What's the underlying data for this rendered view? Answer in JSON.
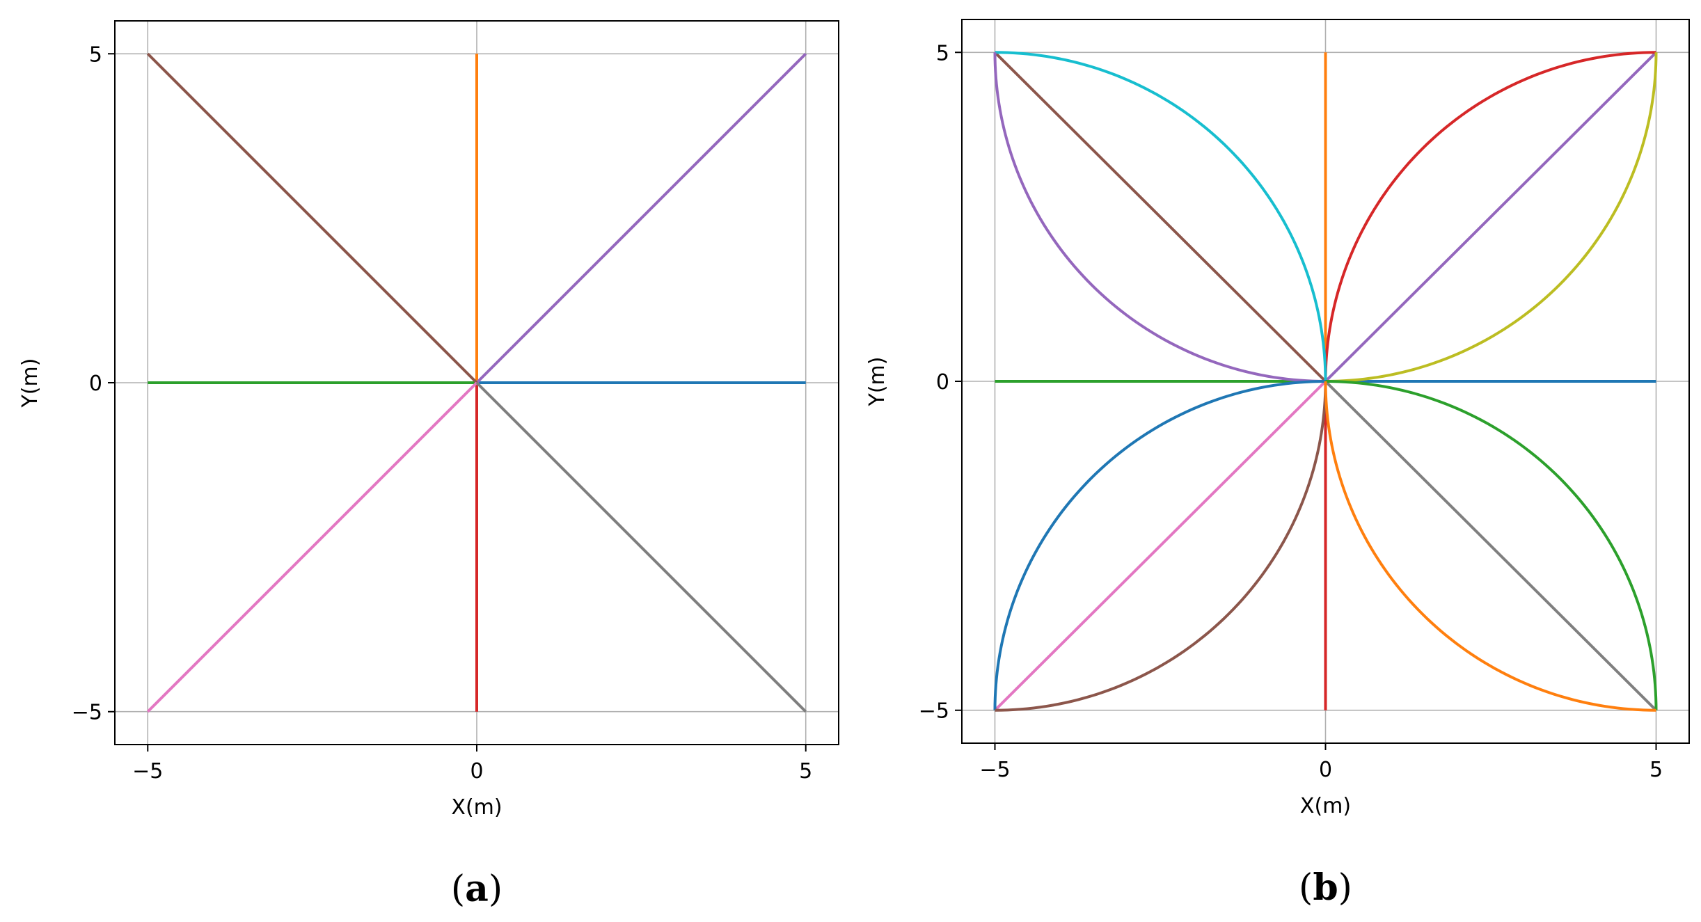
{
  "chart_data": [
    {
      "type": "line",
      "caption": {
        "open": "(",
        "letter": "a",
        "close": ")"
      },
      "xlabel": "X(m)",
      "ylabel": "Y(m)",
      "xlim": [
        -5.5,
        5.5
      ],
      "ylim": [
        -5.5,
        5.5
      ],
      "xticks": [
        -5,
        0,
        5
      ],
      "yticks": [
        -5,
        0,
        5
      ],
      "xtick_labels": [
        "−5",
        "0",
        "5"
      ],
      "ytick_labels": [
        "−5",
        "0",
        "5"
      ],
      "grid": true,
      "series": [
        {
          "color": "#1f77b4",
          "shape": "line",
          "from": [
            0,
            0
          ],
          "to": [
            5,
            0
          ]
        },
        {
          "color": "#ff7f0e",
          "shape": "line",
          "from": [
            0,
            0
          ],
          "to": [
            0,
            5
          ]
        },
        {
          "color": "#2ca02c",
          "shape": "line",
          "from": [
            0,
            0
          ],
          "to": [
            -5,
            0
          ]
        },
        {
          "color": "#d62728",
          "shape": "line",
          "from": [
            0,
            0
          ],
          "to": [
            0,
            -5
          ]
        },
        {
          "color": "#9467bd",
          "shape": "line",
          "from": [
            0,
            0
          ],
          "to": [
            5,
            5
          ]
        },
        {
          "color": "#8c564b",
          "shape": "line",
          "from": [
            0,
            0
          ],
          "to": [
            -5,
            5
          ]
        },
        {
          "color": "#e377c2",
          "shape": "line",
          "from": [
            0,
            0
          ],
          "to": [
            -5,
            -5
          ]
        },
        {
          "color": "#7f7f7f",
          "shape": "line",
          "from": [
            0,
            0
          ],
          "to": [
            5,
            -5
          ]
        }
      ]
    },
    {
      "type": "line",
      "caption": {
        "open": "(",
        "letter": "b",
        "close": ")"
      },
      "xlabel": "X(m)",
      "ylabel": "Y(m)",
      "xlim": [
        -5.5,
        5.5
      ],
      "ylim": [
        -5.5,
        5.5
      ],
      "xticks": [
        -5,
        0,
        5
      ],
      "yticks": [
        -5,
        0,
        5
      ],
      "xtick_labels": [
        "−5",
        "0",
        "5"
      ],
      "ytick_labels": [
        "−5",
        "0",
        "5"
      ],
      "grid": true,
      "series": [
        {
          "color": "#1f77b4",
          "shape": "line",
          "from": [
            0,
            0
          ],
          "to": [
            5,
            0
          ]
        },
        {
          "color": "#ff7f0e",
          "shape": "line",
          "from": [
            0,
            0
          ],
          "to": [
            0,
            5
          ]
        },
        {
          "color": "#2ca02c",
          "shape": "line",
          "from": [
            0,
            0
          ],
          "to": [
            -5,
            0
          ]
        },
        {
          "color": "#d62728",
          "shape": "line",
          "from": [
            0,
            0
          ],
          "to": [
            0,
            -5
          ]
        },
        {
          "color": "#9467bd",
          "shape": "line",
          "from": [
            0,
            0
          ],
          "to": [
            5,
            5
          ]
        },
        {
          "color": "#8c564b",
          "shape": "line",
          "from": [
            0,
            0
          ],
          "to": [
            -5,
            5
          ]
        },
        {
          "color": "#e377c2",
          "shape": "line",
          "from": [
            0,
            0
          ],
          "to": [
            -5,
            -5
          ]
        },
        {
          "color": "#7f7f7f",
          "shape": "line",
          "from": [
            0,
            0
          ],
          "to": [
            5,
            -5
          ]
        },
        {
          "color": "#d62728",
          "shape": "arc",
          "center": [
            5,
            0
          ],
          "radius": 5,
          "from": [
            0,
            0
          ],
          "to": [
            5,
            5
          ]
        },
        {
          "color": "#bcbd22",
          "shape": "arc",
          "center": [
            0,
            5
          ],
          "radius": 5,
          "from": [
            0,
            0
          ],
          "to": [
            5,
            5
          ]
        },
        {
          "color": "#17becf",
          "shape": "arc",
          "center": [
            -5,
            0
          ],
          "radius": 5,
          "from": [
            0,
            0
          ],
          "to": [
            -5,
            5
          ]
        },
        {
          "color": "#9467bd",
          "shape": "arc",
          "center": [
            0,
            5
          ],
          "radius": 5,
          "from": [
            0,
            0
          ],
          "to": [
            -5,
            5
          ]
        },
        {
          "color": "#1f77b4",
          "shape": "arc",
          "center": [
            0,
            -5
          ],
          "radius": 5,
          "from": [
            0,
            0
          ],
          "to": [
            -5,
            -5
          ]
        },
        {
          "color": "#8c564b",
          "shape": "arc",
          "center": [
            -5,
            0
          ],
          "radius": 5,
          "from": [
            0,
            0
          ],
          "to": [
            -5,
            -5
          ]
        },
        {
          "color": "#2ca02c",
          "shape": "arc",
          "center": [
            0,
            -5
          ],
          "radius": 5,
          "from": [
            0,
            0
          ],
          "to": [
            5,
            -5
          ]
        },
        {
          "color": "#ff7f0e",
          "shape": "arc",
          "center": [
            5,
            0
          ],
          "radius": 5,
          "from": [
            0,
            0
          ],
          "to": [
            5,
            -5
          ]
        }
      ]
    }
  ]
}
